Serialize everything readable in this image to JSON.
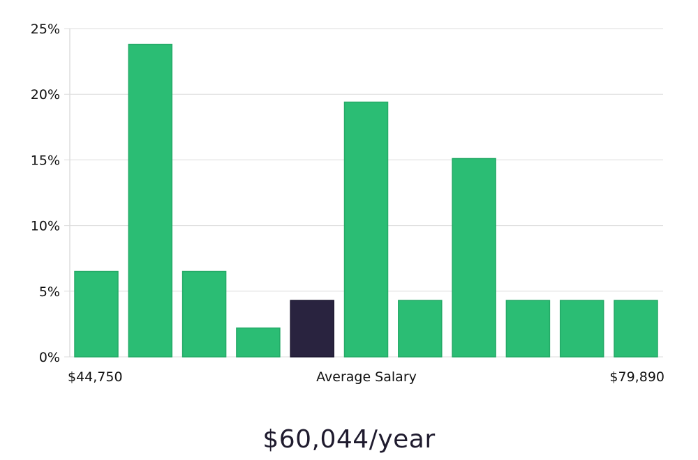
{
  "chart_data": {
    "type": "bar",
    "title": "",
    "xlabel": "",
    "ylabel": "",
    "ylim": [
      0,
      25
    ],
    "y_ticks": [
      0,
      5,
      10,
      15,
      20,
      25
    ],
    "y_tick_labels": [
      "0%",
      "5%",
      "10%",
      "15%",
      "20%",
      "25%"
    ],
    "grid": "horizontal",
    "values": [
      6.5,
      23.8,
      6.5,
      2.2,
      4.3,
      19.4,
      4.3,
      15.1,
      4.3,
      4.3,
      4.3
    ],
    "highlight_index": 4,
    "x_labels": {
      "left": "$44,750",
      "center": "Average Salary",
      "right": "$79,890"
    },
    "colors": {
      "bar": "#2bbd74",
      "bar_stroke": "#24aa67",
      "highlight": "#29233f",
      "grid": "#dcdcdc",
      "axis": "#cccccc",
      "text": "#111111"
    }
  },
  "footer": {
    "salary_text": "$60,044/year"
  }
}
